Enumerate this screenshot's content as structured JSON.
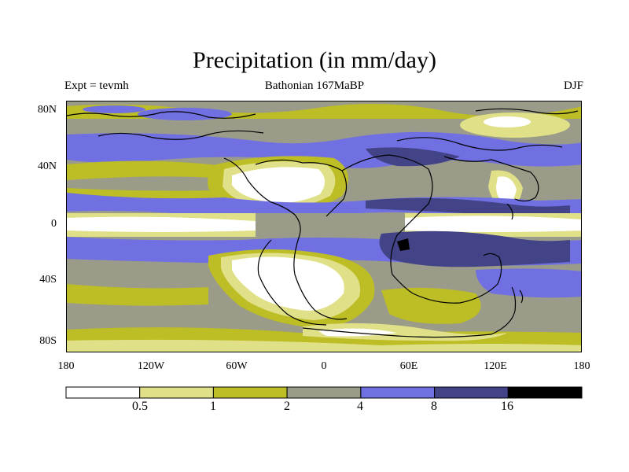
{
  "title": "Precipitation (in mm/day)",
  "subtitle_left": "Expt = tevmh",
  "subtitle_center": "Bathonian 167MaBP",
  "subtitle_right": "DJF",
  "y_axis_labels": [
    "80N",
    "40N",
    "0",
    "40S",
    "80S"
  ],
  "x_axis_labels": [
    "180",
    "120W",
    "60W",
    "0",
    "60E",
    "120E",
    "180"
  ],
  "colorbar": {
    "labels": [
      "0.5",
      "1",
      "2",
      "4",
      "8",
      "16"
    ],
    "colors": [
      "#ffffff",
      "#e0e088",
      "#bdbd25",
      "#9b9b8a",
      "#7070e2",
      "#434388",
      "#000000"
    ]
  },
  "chart_data": {
    "type": "heatmap",
    "title": "Precipitation (in mm/day)",
    "x_range": [
      -180,
      180
    ],
    "y_range": [
      -90,
      90
    ],
    "x_ticks": [
      -180,
      -120,
      -60,
      0,
      60,
      120,
      180
    ],
    "y_ticks": [
      80,
      40,
      0,
      -40,
      -80
    ],
    "levels": [
      0.5,
      1,
      2,
      4,
      8,
      16
    ],
    "units": "mm/day"
  }
}
